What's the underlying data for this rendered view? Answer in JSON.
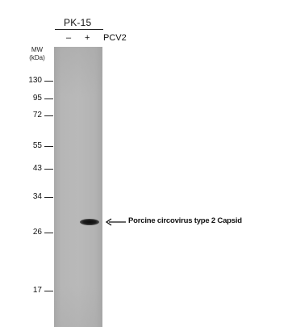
{
  "cell_line": "PK-15",
  "lanes": [
    "–",
    "+"
  ],
  "treatment": "PCV2",
  "mw_header": [
    "MW",
    "(kDa)"
  ],
  "markers": [
    "130",
    "95",
    "72",
    "55",
    "43",
    "34",
    "26",
    "17"
  ],
  "band": {
    "label": "Porcine circovirus type 2 Capsid",
    "lane": "+",
    "approx_kda": 28
  },
  "colors": {
    "membrane": "#b8b8b8",
    "band": "#111111",
    "text": "#111111"
  }
}
